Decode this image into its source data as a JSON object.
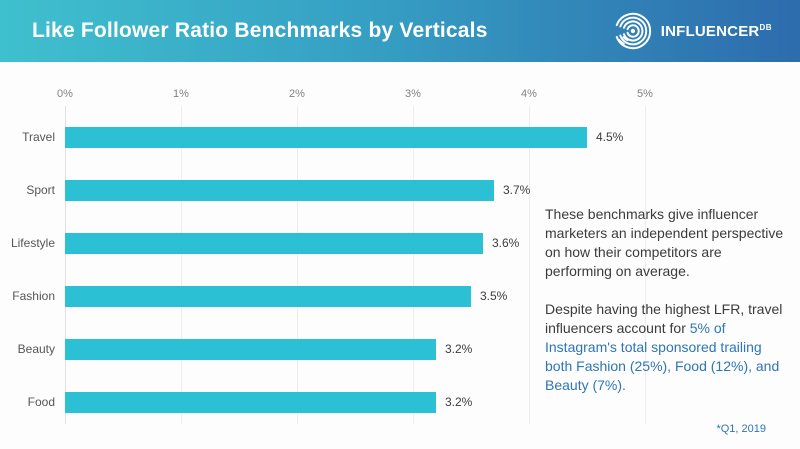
{
  "header": {
    "title": "Like Follower Ratio Benchmarks by Verticals",
    "logo": {
      "brand": "INFLUENCER",
      "sup": "DB",
      "icon": "fingerprint-arcs-icon"
    },
    "gradient_left": "#3fc0ce",
    "gradient_right": "#2d6cad"
  },
  "chart_data": {
    "type": "bar",
    "orientation": "horizontal",
    "categories": [
      "Travel",
      "Sport",
      "Lifestyle",
      "Fashion",
      "Beauty",
      "Food"
    ],
    "values": [
      4.5,
      3.7,
      3.6,
      3.5,
      3.2,
      3.2
    ],
    "value_labels": [
      "4.5%",
      "3.7%",
      "3.6%",
      "3.5%",
      "3.2%",
      "3.2%"
    ],
    "x_ticks": [
      "0%",
      "1%",
      "2%",
      "3%",
      "4%",
      "5%"
    ],
    "x_tick_values": [
      0,
      1,
      2,
      3,
      4,
      5
    ],
    "xlim": [
      0,
      5
    ],
    "title": "Like Follower Ratio Benchmarks by Verticals",
    "xlabel": "",
    "ylabel": "",
    "grid": true,
    "axis_position": "top",
    "bar_color": "#2bc0d4",
    "legend": "none"
  },
  "annotation": {
    "para1": "These benchmarks give influencer marketers an independent perspective on how their competitors are performing on average.",
    "para2_black": "Despite having the highest LFR, travel influencers account for ",
    "para2_blue": "5% of Instagram's total sponsored trailing both Fashion (25%), Food (12%), and Beauty (7%)."
  },
  "footnote": "*Q1, 2019",
  "colors": {
    "bar": "#2bc0d4",
    "link_blue": "#2e75b6",
    "gridline": "#ededed",
    "tick_text": "#818181",
    "category_text": "#565656",
    "value_text": "#3c3c3c"
  }
}
